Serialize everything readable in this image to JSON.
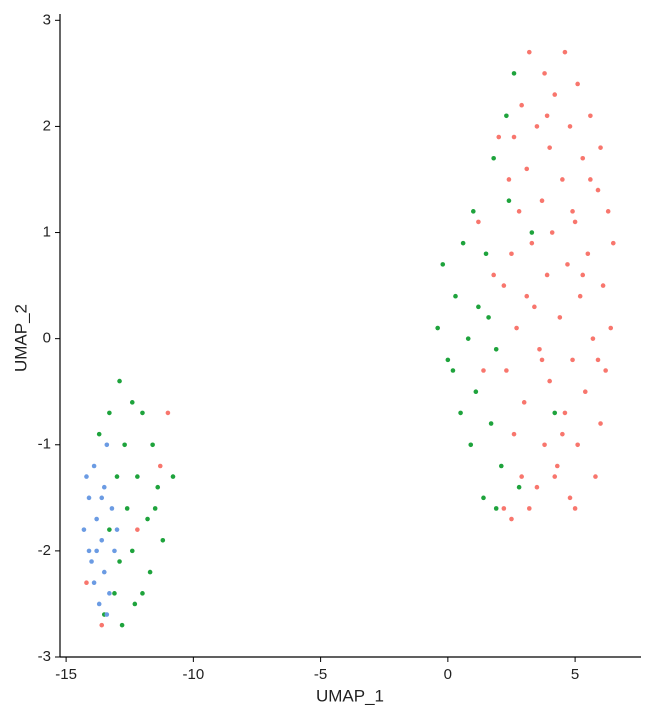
{
  "chart_data": {
    "type": "scatter",
    "xlabel": "UMAP_1",
    "ylabel": "UMAP_2",
    "xlim": [
      -15.24,
      7.55
    ],
    "ylim": [
      -3,
      3.05
    ],
    "xticks": [
      -15,
      -10,
      -5,
      0,
      5
    ],
    "yticks": [
      -3,
      -2,
      -1,
      0,
      1,
      2,
      3
    ],
    "grid": false,
    "series": [
      {
        "color": "#F8766D",
        "x": [
          3.2,
          4.6,
          3.8,
          5.1,
          4.2,
          2.9,
          5.6,
          3.5,
          4.8,
          2.6,
          6.0,
          4.0,
          5.3,
          3.1,
          2.4,
          4.5,
          5.9,
          3.7,
          6.3,
          2.8,
          5.0,
          4.1,
          3.3,
          6.5,
          5.5,
          2.5,
          4.7,
          3.9,
          6.1,
          2.2,
          5.2,
          3.4,
          4.4,
          6.4,
          2.7,
          5.7,
          3.6,
          4.9,
          2.3,
          6.2,
          4.0,
          5.4,
          3.0,
          4.6,
          6.0,
          2.6,
          3.8,
          5.1,
          4.3,
          2.9,
          5.8,
          3.5,
          4.8,
          2.2,
          3.2,
          5.0,
          2.5,
          1.4,
          1.8,
          2.0,
          1.2,
          4.2,
          5.6,
          3.9,
          4.9,
          3.1,
          5.9,
          4.5,
          3.7,
          5.3,
          -11.0,
          -12.2,
          -14.2,
          -11.3,
          -13.6
        ],
        "values": [
          2.7,
          2.7,
          2.5,
          2.4,
          2.3,
          2.2,
          2.1,
          2.0,
          2.0,
          1.9,
          1.8,
          1.8,
          1.7,
          1.6,
          1.5,
          1.5,
          1.4,
          1.3,
          1.2,
          1.2,
          1.1,
          1.0,
          0.9,
          0.9,
          0.8,
          0.8,
          0.7,
          0.6,
          0.5,
          0.5,
          0.4,
          0.3,
          0.2,
          0.1,
          0.1,
          0.0,
          -0.1,
          -0.2,
          -0.3,
          -0.3,
          -0.4,
          -0.5,
          -0.6,
          -0.7,
          -0.8,
          -0.9,
          -1.0,
          -1.0,
          -1.2,
          -1.3,
          -1.3,
          -1.4,
          -1.5,
          -1.6,
          -1.6,
          -1.6,
          -1.7,
          -0.3,
          0.6,
          1.9,
          1.1,
          -1.3,
          1.5,
          2.1,
          1.2,
          0.4,
          -0.2,
          -0.9,
          -0.2,
          0.6,
          -0.7,
          -1.8,
          -2.3,
          -1.2,
          -2.7
        ]
      },
      {
        "color": "#1EA33C",
        "x": [
          2.6,
          2.3,
          1.8,
          1.0,
          0.6,
          -0.2,
          1.5,
          0.3,
          1.2,
          -0.4,
          0.8,
          1.9,
          0.2,
          1.1,
          0.5,
          1.7,
          0.9,
          2.1,
          1.4,
          1.9,
          2.4,
          0.0,
          1.6,
          2.8,
          3.3,
          4.2,
          -12.9,
          -13.3,
          -12.4,
          -12.0,
          -13.7,
          -12.7,
          -11.6,
          -13.0,
          -12.2,
          -11.4,
          -10.8,
          -12.6,
          -11.8,
          -13.3,
          -11.2,
          -12.4,
          -12.9,
          -11.7,
          -13.1,
          -12.3,
          -13.5,
          -12.8,
          -11.5,
          -12.0
        ],
        "values": [
          2.5,
          2.1,
          1.7,
          1.2,
          0.9,
          0.7,
          0.8,
          0.4,
          0.3,
          0.1,
          0.0,
          -0.1,
          -0.3,
          -0.5,
          -0.7,
          -0.8,
          -1.0,
          -1.2,
          -1.5,
          -1.6,
          1.3,
          -0.2,
          0.2,
          -1.4,
          1.0,
          -0.7,
          -0.4,
          -0.7,
          -0.6,
          -0.7,
          -0.9,
          -1.0,
          -1.0,
          -1.3,
          -1.3,
          -1.4,
          -1.3,
          -1.6,
          -1.7,
          -1.8,
          -1.9,
          -2.0,
          -2.1,
          -2.2,
          -2.4,
          -2.5,
          -2.6,
          -2.7,
          -1.6,
          -2.4
        ]
      },
      {
        "color": "#6B9BE3",
        "x": [
          -13.4,
          -13.9,
          -13.5,
          -14.1,
          -13.2,
          -13.8,
          -14.3,
          -13.6,
          -13.1,
          -14.0,
          -13.5,
          -13.9,
          -13.3,
          -13.7,
          -14.2,
          -13.0,
          -13.8,
          -13.4,
          -14.1,
          -13.6
        ],
        "values": [
          -1.0,
          -1.2,
          -1.4,
          -1.5,
          -1.6,
          -1.7,
          -1.8,
          -1.9,
          -2.0,
          -2.1,
          -2.2,
          -2.3,
          -2.4,
          -2.5,
          -1.3,
          -1.8,
          -2.0,
          -2.6,
          -2.0,
          -1.5
        ]
      }
    ]
  }
}
